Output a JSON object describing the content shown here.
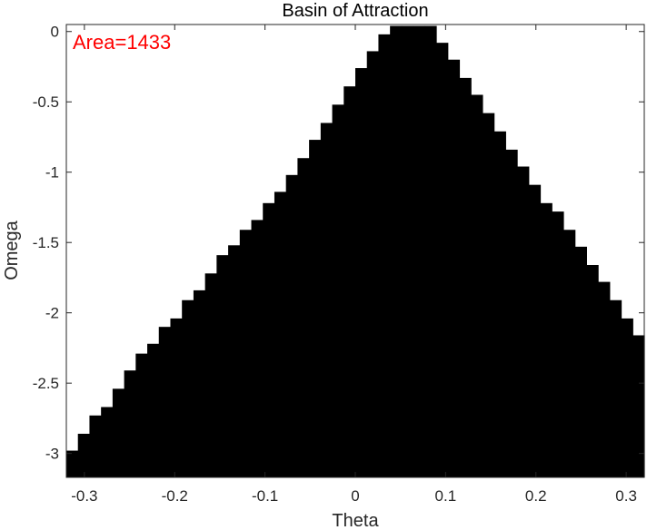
{
  "chart_data": {
    "type": "heatmap",
    "title": "Basin of Attraction",
    "xlabel": "Theta",
    "ylabel": "Omega",
    "xlim": [
      -0.32,
      0.32
    ],
    "ylim": [
      -3.17,
      0.05
    ],
    "xticks": [
      -0.3,
      -0.2,
      -0.1,
      0,
      0.1,
      0.2,
      0.3
    ],
    "xtick_labels": [
      "-0.3",
      "-0.2",
      "-0.1",
      "0",
      "0.1",
      "0.2",
      "0.3"
    ],
    "yticks": [
      0,
      -0.5,
      -1,
      -1.5,
      -2,
      -2.5,
      -3
    ],
    "ytick_labels": [
      "0",
      "-0.5",
      "-1",
      "-1.5",
      "-2",
      "-2.5",
      "-3"
    ],
    "grid": false,
    "annotation": {
      "text": "Area=1433",
      "color": "#ff0000"
    },
    "region_color": "#000000",
    "background_color": "#ffffff",
    "cell_width": 0.0128,
    "cell_height": 0.08,
    "region": {
      "description": "Black cells mark initial (Theta, Omega) states that converge; triangular basin apex near Theta=0, Omega=0",
      "columns_x_start": [
        -0.32,
        -0.3072,
        -0.2944,
        -0.2816,
        -0.2688,
        -0.256,
        -0.2432,
        -0.2304,
        -0.2176,
        -0.2048,
        -0.192,
        -0.1792,
        -0.1664,
        -0.1536,
        -0.1408,
        -0.128,
        -0.1152,
        -0.1024,
        -0.0896,
        -0.0768,
        -0.064,
        -0.0512,
        -0.0384,
        -0.0256,
        -0.0128,
        0.0,
        0.0128,
        0.0256,
        0.0384,
        0.0512,
        0.064,
        0.0768,
        0.0896,
        0.1024,
        0.1152,
        0.128,
        0.1408,
        0.1536,
        0.1664,
        0.1792,
        0.192,
        0.2048,
        0.2176,
        0.2304,
        0.2432,
        0.256,
        0.2688,
        0.2816,
        0.2944,
        0.3072
      ],
      "columns_top_omega": [
        -2.98,
        -2.86,
        -2.73,
        -2.67,
        -2.54,
        -2.41,
        -2.29,
        -2.22,
        -2.1,
        -2.04,
        -1.91,
        -1.84,
        -1.72,
        -1.59,
        -1.52,
        -1.41,
        -1.34,
        -1.22,
        -1.14,
        -1.02,
        -0.9,
        -0.77,
        -0.65,
        -0.52,
        -0.39,
        -0.26,
        -0.14,
        -0.02,
        0.04,
        0.04,
        0.04,
        0.04,
        -0.08,
        -0.2,
        -0.33,
        -0.45,
        -0.58,
        -0.71,
        -0.84,
        -0.96,
        -1.09,
        -1.22,
        -1.28,
        -1.41,
        -1.53,
        -1.66,
        -1.78,
        -1.91,
        -2.04,
        -2.16
      ],
      "columns_bottom_omega": -3.17
    }
  }
}
